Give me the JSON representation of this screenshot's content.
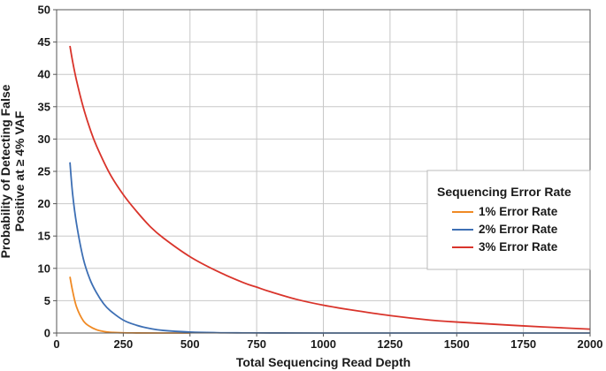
{
  "chart_data": {
    "type": "line",
    "xlabel": "Total Sequencing Read Depth",
    "ylabel_lines": [
      "Probability of Detecting False",
      "Positive at ≥ 4% VAF"
    ],
    "xlim": [
      0,
      2000
    ],
    "ylim": [
      0,
      50
    ],
    "xticks": [
      0,
      250,
      500,
      750,
      1000,
      1250,
      1500,
      1750,
      2000
    ],
    "yticks": [
      0,
      5,
      10,
      15,
      20,
      25,
      30,
      35,
      40,
      45,
      50
    ],
    "grid": true,
    "legend": {
      "title": "Sequencing Error Rate",
      "placement": "right"
    },
    "series": [
      {
        "name": "1% Error Rate",
        "color": "#f08a24",
        "x": [
          50,
          60,
          75,
          100,
          125,
          150,
          175,
          200,
          250,
          300,
          400,
          500
        ],
        "y": [
          8.7,
          6.5,
          4.0,
          1.9,
          1.0,
          0.5,
          0.25,
          0.12,
          0.03,
          0.01,
          0.0,
          0.0
        ]
      },
      {
        "name": "2% Error Rate",
        "color": "#3d6fb4",
        "x": [
          50,
          60,
          75,
          100,
          125,
          150,
          175,
          200,
          250,
          300,
          350,
          400,
          500,
          600,
          700,
          800,
          1000,
          1500,
          2000
        ],
        "y": [
          26.4,
          21.5,
          16.8,
          11.5,
          8.3,
          6.2,
          4.6,
          3.5,
          2.0,
          1.2,
          0.7,
          0.4,
          0.15,
          0.05,
          0.02,
          0.01,
          0.0,
          0.0,
          0.0
        ]
      },
      {
        "name": "3% Error Rate",
        "color": "#d9342b",
        "x": [
          50,
          60,
          75,
          100,
          125,
          150,
          200,
          250,
          300,
          350,
          400,
          500,
          600,
          700,
          750,
          800,
          900,
          1000,
          1100,
          1250,
          1400,
          1500,
          1750,
          2000
        ],
        "y": [
          44.4,
          42.0,
          39.0,
          34.9,
          31.6,
          28.9,
          24.6,
          21.4,
          18.8,
          16.5,
          14.7,
          11.8,
          9.6,
          7.8,
          7.1,
          6.4,
          5.2,
          4.3,
          3.6,
          2.7,
          2.0,
          1.7,
          1.1,
          0.6
        ]
      }
    ]
  }
}
